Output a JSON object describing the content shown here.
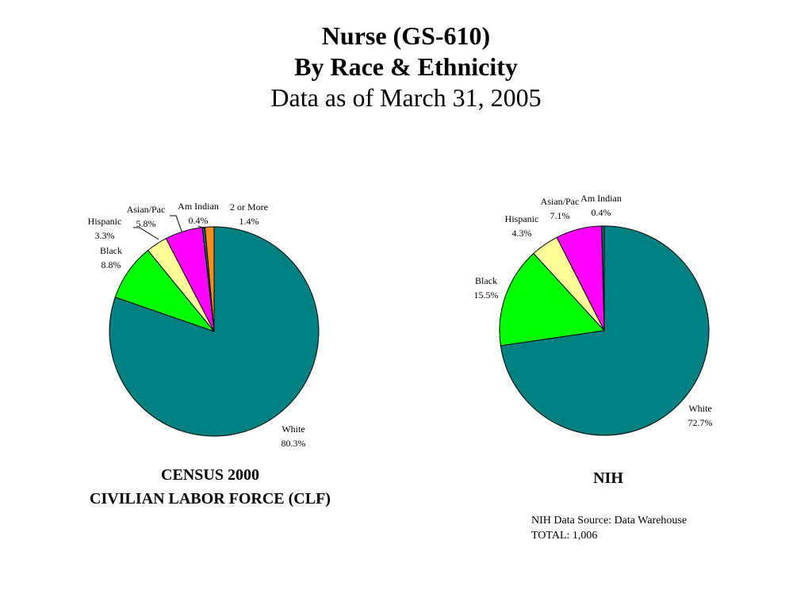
{
  "header": {
    "title": "Nurse (GS-610)",
    "subtitle": "By Race & Ethnicity",
    "date_line": "Data as of March 31, 2005"
  },
  "charts": {
    "census": {
      "caption_line1": "CENSUS 2000",
      "caption_line2": "CIVILIAN LABOR FORCE (CLF)"
    },
    "nih": {
      "caption": "NIH"
    }
  },
  "note": {
    "source": "NIH Data Source: Data Warehouse",
    "total": "TOTAL:  1,006"
  },
  "chart_data": [
    {
      "type": "pie",
      "title": "CENSUS 2000 CIVILIAN LABOR FORCE (CLF)",
      "slices": [
        {
          "label": "2 or More",
          "value": 1.4,
          "display": "1.4%",
          "color": "#FF8C1A"
        },
        {
          "label": "Am Indian",
          "value": 0.4,
          "display": "0.4%",
          "color": "#0A6E6E"
        },
        {
          "label": "Asian/Pac",
          "value": 5.8,
          "display": "5.8%",
          "color": "#FF00FF"
        },
        {
          "label": "Hispanic",
          "value": 3.3,
          "display": "3.3%",
          "color": "#FFFF99"
        },
        {
          "label": "Black",
          "value": 8.8,
          "display": "8.8%",
          "color": "#00FF00"
        },
        {
          "label": "White",
          "value": 80.3,
          "display": "80.3%",
          "color": "#008080"
        }
      ]
    },
    {
      "type": "pie",
      "title": "NIH",
      "slices": [
        {
          "label": "Am Indian",
          "value": 0.4,
          "display": "0.4%",
          "color": "#0A6E6E"
        },
        {
          "label": "Asian/Pac",
          "value": 7.1,
          "display": "7.1%",
          "color": "#FF00FF"
        },
        {
          "label": "Hispanic",
          "value": 4.3,
          "display": "4.3%",
          "color": "#FFFF99"
        },
        {
          "label": "Black",
          "value": 15.5,
          "display": "15.5%",
          "color": "#00FF00"
        },
        {
          "label": "White",
          "value": 72.7,
          "display": "72.7%",
          "color": "#008080"
        }
      ]
    }
  ]
}
